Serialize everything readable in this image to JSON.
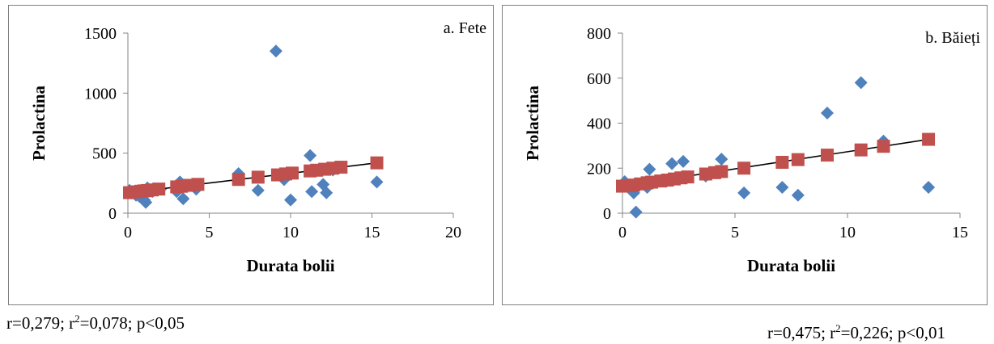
{
  "caption": {
    "left": {
      "r": "r=0,279; r",
      "sup": "2",
      "rest": "=0,078; p<0,05"
    },
    "right": {
      "r": "r=0,475; r",
      "sup": "2",
      "rest": "=0,226; p<0,01"
    }
  },
  "colors": {
    "points": "#4F81BD",
    "fitted": "#C0504D",
    "trend": "#000000",
    "axis": "#868686"
  },
  "chart_data": [
    {
      "type": "scatter",
      "title": "a.   Fete",
      "xlabel": "Durata bolii",
      "ylabel": "Prolactina",
      "xlim": [
        0,
        20
      ],
      "ylim": [
        0,
        1500
      ],
      "xticks": [
        0,
        5,
        10,
        15,
        20
      ],
      "yticks": [
        0,
        500,
        1000,
        1500
      ],
      "grid": false,
      "series": [
        {
          "marker": "diamond",
          "x": [
            0.1,
            0.3,
            0.5,
            0.7,
            0.9,
            1.0,
            1.1,
            1.2,
            1.5,
            2.0,
            3.0,
            3.2,
            3.4,
            3.8,
            4.2,
            6.8,
            8.0,
            9.1,
            9.6,
            10.0,
            11.2,
            11.3,
            12.0,
            12.2,
            12.6,
            15.3
          ],
          "y": [
            190,
            170,
            150,
            140,
            120,
            110,
            90,
            210,
            180,
            200,
            180,
            260,
            120,
            230,
            200,
            330,
            190,
            1350,
            280,
            110,
            480,
            180,
            240,
            170,
            360,
            260
          ]
        },
        {
          "marker": "square",
          "x": [
            0.1,
            0.5,
            0.8,
            1.0,
            1.2,
            1.5,
            1.9,
            3.0,
            3.3,
            3.8,
            4.3,
            6.8,
            8.0,
            9.2,
            9.7,
            10.1,
            11.2,
            11.6,
            12.1,
            12.6,
            13.1,
            15.3
          ],
          "y": [
            171,
            178,
            183,
            186,
            189,
            194,
            201,
            219,
            224,
            232,
            240,
            281,
            300,
            319,
            327,
            334,
            352,
            358,
            366,
            375,
            383,
            419
          ]
        }
      ],
      "trendline": {
        "x": [
          0.1,
          15.3
        ],
        "y": [
          171,
          419
        ]
      }
    },
    {
      "type": "scatter",
      "title": "b. Băieți",
      "xlabel": "Durata bolii",
      "ylabel": "Prolactina",
      "xlim": [
        0,
        15
      ],
      "ylim": [
        0,
        800
      ],
      "xticks": [
        0,
        5,
        10,
        15
      ],
      "yticks": [
        0,
        200,
        400,
        600,
        800
      ],
      "grid": false,
      "series": [
        {
          "marker": "diamond",
          "x": [
            0.1,
            0.5,
            0.6,
            1.1,
            1.2,
            2.2,
            2.7,
            3.7,
            4.4,
            5.4,
            7.1,
            7.8,
            9.1,
            10.6,
            11.6,
            13.6
          ],
          "y": [
            140,
            90,
            5,
            115,
            195,
            220,
            230,
            165,
            240,
            90,
            115,
            80,
            445,
            580,
            320,
            115
          ]
        },
        {
          "marker": "square",
          "x": [
            0.0,
            0.3,
            0.5,
            0.8,
            1.1,
            1.3,
            1.7,
            2.0,
            2.3,
            2.6,
            2.9,
            3.7,
            4.1,
            4.4,
            5.4,
            7.1,
            7.8,
            9.1,
            10.6,
            11.6,
            13.6
          ],
          "y": [
            120,
            123,
            125,
            130,
            135,
            138,
            143,
            147,
            152,
            157,
            161,
            174,
            180,
            185,
            200,
            226,
            238,
            258,
            281,
            297,
            328
          ]
        }
      ],
      "trendline": {
        "x": [
          0.1,
          13.6
        ],
        "y": [
          122,
          328
        ]
      }
    }
  ]
}
